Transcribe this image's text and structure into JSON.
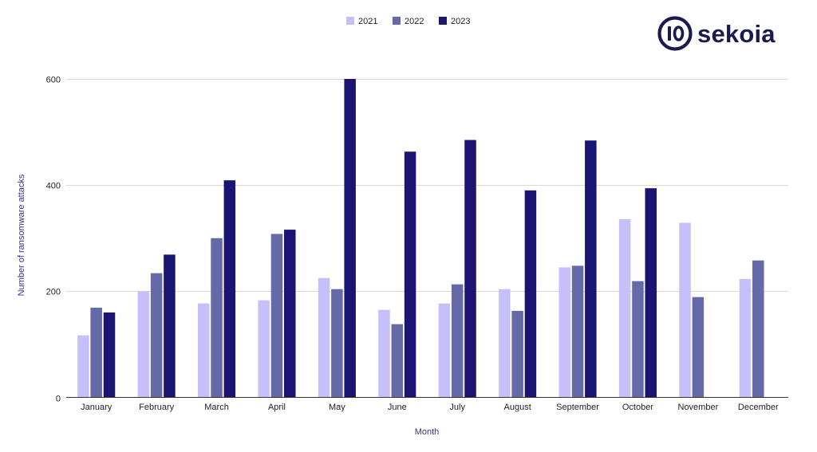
{
  "brand": {
    "logo_text": "sekoia",
    "logo_color": "#1b1a4f"
  },
  "chart_data": {
    "type": "bar",
    "categories": [
      "January",
      "February",
      "March",
      "April",
      "May",
      "June",
      "July",
      "August",
      "September",
      "October",
      "November",
      "December"
    ],
    "series": [
      {
        "name": "2021",
        "color": "#c5c0fa",
        "values": [
          117,
          200,
          177,
          183,
          225,
          165,
          177,
          204,
          245,
          336,
          329,
          223
        ]
      },
      {
        "name": "2022",
        "color": "#6669a8",
        "values": [
          169,
          234,
          300,
          308,
          204,
          138,
          213,
          163,
          248,
          219,
          189,
          258
        ]
      },
      {
        "name": "2023",
        "color": "#1c1473",
        "values": [
          160,
          269,
          409,
          316,
          600,
          463,
          485,
          390,
          484,
          394,
          null,
          null
        ]
      }
    ],
    "xlabel": "Month",
    "ylabel": "Number of ransomware attacks",
    "ylim": [
      0,
      600
    ],
    "yticks": [
      0,
      200,
      400,
      600
    ],
    "grid": true,
    "legend_position": "top-center",
    "axis_title_color": "#3b2f8f"
  }
}
